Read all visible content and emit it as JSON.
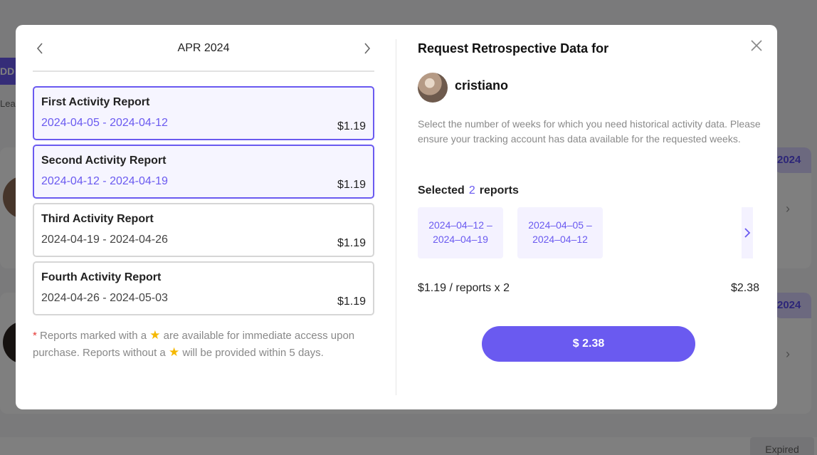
{
  "background": {
    "add_button_label": "DD A",
    "learn_label": "Lear",
    "card_dates": [
      "2024",
      "2024"
    ],
    "expired_label": "Expired"
  },
  "calendar": {
    "month_label": "APR 2024",
    "prev_icon": "chevron-left-icon",
    "next_icon": "chevron-right-icon"
  },
  "reports": [
    {
      "title": "First Activity Report",
      "dates": "2024-04-05 - 2024-04-12",
      "price": "$1.19",
      "selected": true
    },
    {
      "title": "Second Activity Report",
      "dates": "2024-04-12 - 2024-04-19",
      "price": "$1.19",
      "selected": true
    },
    {
      "title": "Third Activity Report",
      "dates": "2024-04-19 - 2024-04-26",
      "price": "$1.19",
      "selected": false
    },
    {
      "title": "Fourth Activity Report",
      "dates": "2024-04-26 - 2024-05-03",
      "price": "$1.19",
      "selected": false
    }
  ],
  "note": {
    "asterisk": "*",
    "part1": " Reports marked with a ",
    "part2": " are available for immediate access upon purchase. Reports without a ",
    "part3": " will be provided within 5 days.",
    "star_icon": "star-icon"
  },
  "request": {
    "title": "Request Retrospective Data for",
    "user_name": "cristiano",
    "description": "Select the number of weeks for which you need historical activity data. Please ensure your tracking account has data available for the requested weeks.",
    "selected_prefix": "Selected",
    "selected_count": "2",
    "selected_suffix": "reports",
    "chips": [
      {
        "line1": "2024–04–12 –",
        "line2": "2024–04–19"
      },
      {
        "line1": "2024–04–05 –",
        "line2": "2024–04–12"
      }
    ],
    "calc_label": "$1.19 / reports x 2",
    "calc_total": "$2.38",
    "pay_button_label": "$ 2.38"
  },
  "colors": {
    "accent": "#6a5af0",
    "selected_bg": "#f6f5ff",
    "chip_bg": "#f4f2ff",
    "star": "#f5b800",
    "asterisk": "#e53935"
  }
}
